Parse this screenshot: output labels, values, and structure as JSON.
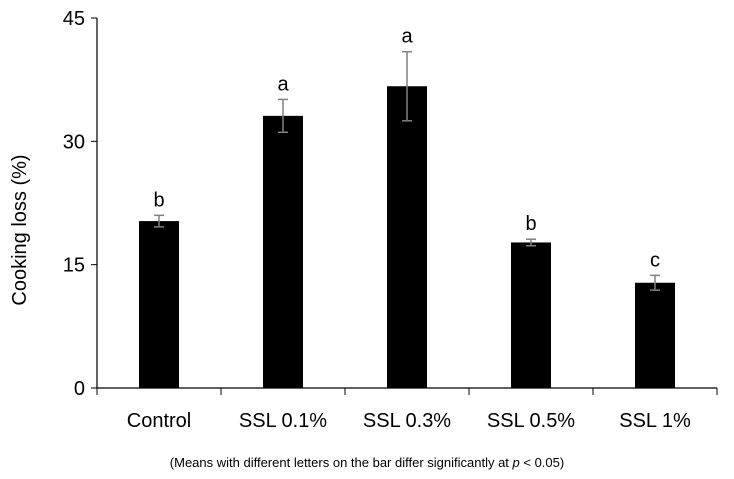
{
  "chart_data": {
    "type": "bar",
    "title": "",
    "xlabel": "",
    "ylabel": "Cooking loss (%)",
    "ylim": [
      0,
      45
    ],
    "yticks": [
      "0",
      "15",
      "30",
      "45"
    ],
    "categories": [
      "Control",
      "SSL 0.1%",
      "SSL 0.3%",
      "SSL 0.5%",
      "SSL 1%"
    ],
    "values": [
      20.3,
      33.1,
      36.7,
      17.7,
      12.8
    ],
    "errors": [
      0.7,
      2.0,
      4.2,
      0.4,
      0.9
    ],
    "letters": [
      "b",
      "a",
      "a",
      "b",
      "c"
    ],
    "bar_color": "#000000",
    "grid": false,
    "legend": "none"
  },
  "footnote": {
    "prefix": "(Means with different letters on the bar differ significantly at ",
    "p": "p",
    "suffix": " < 0.05)"
  }
}
